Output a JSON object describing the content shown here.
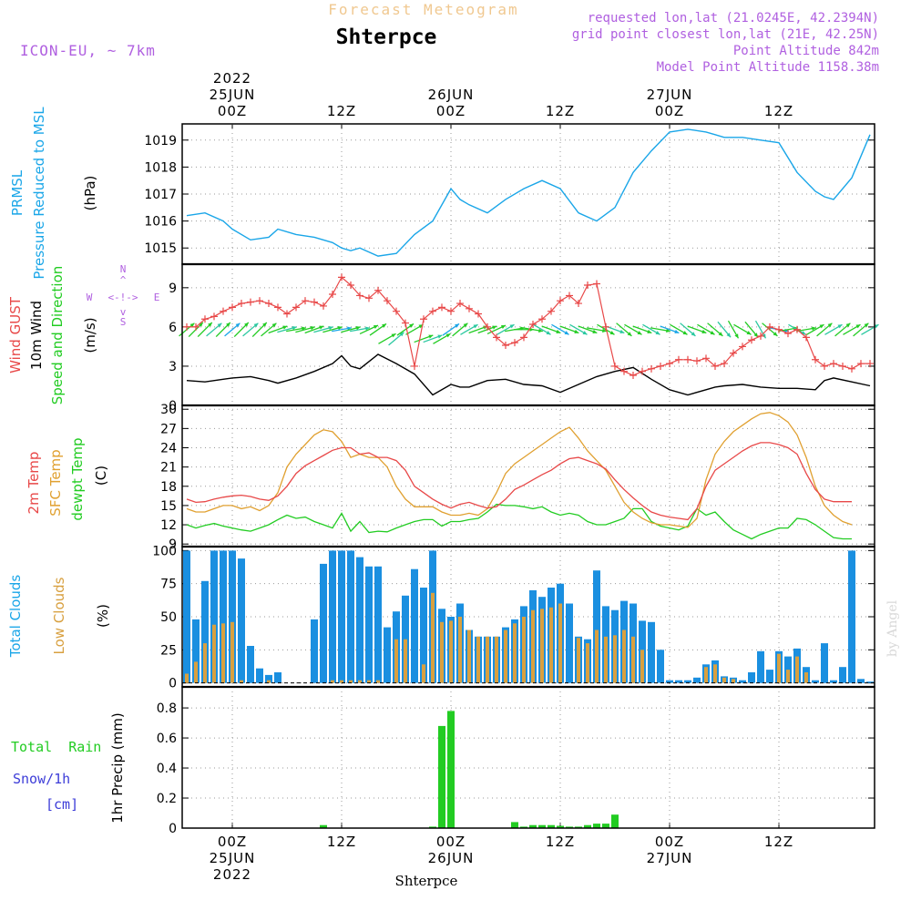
{
  "header": {
    "top_title": "Forecast Meteogram",
    "location": "Shterpce",
    "model": "ICON-EU, ~ 7km",
    "requested": "requested lon,lat (21.0245E, 42.2394N)",
    "closest": "grid point closest lon,lat (21E, 42.25N)",
    "point_alt": "Point Altitude 842m",
    "model_alt": "Model Point Altitude 1158.38m",
    "credit": "by Angel",
    "bottom_label": "Shterpce"
  },
  "colors": {
    "pressure": "#1aa6e8",
    "gust": "#e84848",
    "wind": "#000000",
    "temp2m": "#e84848",
    "sfc": "#e0a030",
    "dew": "#22cc22",
    "cloud_total": "#1a8fe0",
    "cloud_low": "#d8a040",
    "rain": "#22cc22",
    "snow": "#3c3cd8",
    "title_top": "#f0c890",
    "purple": "#b060e0"
  },
  "time_axis": {
    "top": [
      {
        "hour": 0,
        "lines": [
          "2022",
          "25JUN",
          "00Z"
        ]
      },
      {
        "hour": 12,
        "lines": [
          "12Z"
        ]
      },
      {
        "hour": 24,
        "lines": [
          "26JUN",
          "00Z"
        ]
      },
      {
        "hour": 36,
        "lines": [
          "12Z"
        ]
      },
      {
        "hour": 48,
        "lines": [
          "27JUN",
          "00Z"
        ]
      },
      {
        "hour": 60,
        "lines": [
          "12Z"
        ]
      }
    ],
    "bottom": [
      {
        "hour": 0,
        "lines": [
          "00Z",
          "25JUN",
          "2022"
        ]
      },
      {
        "hour": 12,
        "lines": [
          "12Z"
        ]
      },
      {
        "hour": 24,
        "lines": [
          "00Z",
          "26JUN"
        ]
      },
      {
        "hour": 36,
        "lines": [
          "12Z"
        ]
      },
      {
        "hour": 48,
        "lines": [
          "00Z",
          "27JUN"
        ]
      },
      {
        "hour": 60,
        "lines": [
          "12Z"
        ]
      }
    ]
  },
  "labels": {
    "prmsl": "PRMSL",
    "prmsl_long": "Pressure Reduced to MSL",
    "prmsl_unit": "(hPa)",
    "gust": "Wind GUST",
    "wind10": "10m Wind",
    "wind_dir": "Speed and Direction",
    "wind_unit": "(m/s)",
    "compass_n": "N",
    "compass_s": "S",
    "compass_w": "W",
    "compass_e": "E",
    "compass_ew": "<-!->",
    "compass_up": "^",
    "compass_dn": "v",
    "temp2m": "2m Temp",
    "sfc": "SFC Temp",
    "dew": "dewpt Temp",
    "temp_unit": "(C)",
    "total_clouds": "Total Clouds",
    "low_clouds": "Low Clouds",
    "cloud_unit": "(%)",
    "total_rain": "Total  Rain",
    "snow": "Snow/1h",
    "snow_unit": "[cm]",
    "precip": "1hr Precip (mm)"
  },
  "chart_data": [
    {
      "type": "line",
      "name": "pressure",
      "ylim": [
        1014.4,
        1019.6
      ],
      "yticks": [
        "1015",
        "1016",
        "1017",
        "1018",
        "1019"
      ],
      "hours": [
        -5,
        -3,
        -1,
        0,
        2,
        4,
        5,
        7,
        9,
        11,
        12,
        13,
        14,
        16,
        18,
        20,
        22,
        24,
        25,
        26,
        28,
        30,
        32,
        34,
        36,
        38,
        40,
        42,
        44,
        46,
        48,
        50,
        52,
        53,
        54,
        56,
        58,
        60,
        62,
        64,
        65,
        66,
        68,
        70
      ],
      "values": [
        1016.2,
        1016.3,
        1016.0,
        1015.7,
        1015.3,
        1015.4,
        1015.7,
        1015.5,
        1015.4,
        1015.2,
        1015.0,
        1014.9,
        1015.0,
        1014.7,
        1014.8,
        1015.5,
        1016.0,
        1017.2,
        1016.8,
        1016.6,
        1016.3,
        1016.8,
        1017.2,
        1017.5,
        1017.2,
        1016.3,
        1016.0,
        1016.5,
        1017.8,
        1018.6,
        1019.3,
        1019.4,
        1019.3,
        1019.2,
        1019.1,
        1019.1,
        1019.0,
        1018.9,
        1017.8,
        1017.1,
        1016.9,
        1016.8,
        1017.6,
        1019.2
      ]
    },
    {
      "type": "line",
      "name": "wind",
      "ylim": [
        0,
        10.8
      ],
      "yticks": [
        "0",
        "3",
        "6",
        "9"
      ],
      "gust_hours": [
        -5,
        -4,
        -3,
        -2,
        -1,
        0,
        1,
        2,
        3,
        4,
        5,
        6,
        7,
        8,
        9,
        10,
        11,
        12,
        13,
        14,
        15,
        16,
        17,
        18,
        19,
        20,
        21,
        22,
        23,
        24,
        25,
        26,
        27,
        28,
        29,
        30,
        31,
        32,
        33,
        34,
        35,
        36,
        37,
        38,
        39,
        40,
        41,
        42,
        43,
        44,
        45,
        46,
        47,
        48,
        49,
        50,
        51,
        52,
        53,
        54,
        55,
        56,
        57,
        58,
        59,
        60,
        61,
        62,
        63,
        64,
        65,
        66,
        67,
        68,
        69,
        70
      ],
      "gust": [
        6.0,
        6.0,
        6.6,
        6.8,
        7.2,
        7.5,
        7.8,
        7.9,
        8.0,
        7.8,
        7.5,
        7.0,
        7.5,
        8.0,
        7.9,
        7.6,
        8.5,
        9.8,
        9.2,
        8.4,
        8.2,
        8.8,
        8.0,
        7.2,
        6.3,
        3.0,
        6.6,
        7.2,
        7.5,
        7.2,
        7.8,
        7.4,
        7.0,
        6.0,
        5.2,
        4.6,
        4.8,
        5.2,
        6.2,
        6.6,
        7.2,
        8.0,
        8.4,
        7.8,
        9.2,
        9.3,
        6.0,
        3.0,
        2.6,
        2.3,
        2.6,
        2.8,
        3.0,
        3.2,
        3.5,
        3.5,
        3.4,
        3.6,
        3.0,
        3.2,
        4.0,
        4.5,
        5.0,
        5.3,
        6.0,
        5.8,
        5.5,
        5.8,
        5.2,
        3.5,
        3.0,
        3.2,
        3.0,
        2.8,
        3.2,
        3.2
      ],
      "speed_hours": [
        -5,
        -3,
        -1,
        0,
        2,
        4,
        5,
        7,
        9,
        11,
        12,
        13,
        14,
        16,
        18,
        20,
        22,
        24,
        25,
        26,
        28,
        30,
        32,
        34,
        36,
        38,
        40,
        42,
        44,
        46,
        48,
        50,
        52,
        53,
        54,
        56,
        58,
        60,
        62,
        64,
        65,
        66,
        68,
        70
      ],
      "speed": [
        1.9,
        1.8,
        2.0,
        2.1,
        2.2,
        1.9,
        1.7,
        2.1,
        2.6,
        3.2,
        3.8,
        3.0,
        2.8,
        3.9,
        3.2,
        2.4,
        0.8,
        1.6,
        1.4,
        1.4,
        1.9,
        2.0,
        1.6,
        1.5,
        1.0,
        1.6,
        2.2,
        2.6,
        2.9,
        2.0,
        1.2,
        0.8,
        1.2,
        1.4,
        1.5,
        1.6,
        1.4,
        1.3,
        1.3,
        1.2,
        1.9,
        2.1,
        1.8,
        1.5
      ],
      "arrow_hours": [
        -5,
        -4,
        -3,
        -2,
        -1,
        0,
        1,
        2,
        3,
        4,
        5,
        6,
        7,
        8,
        9,
        10,
        11,
        12,
        13,
        14,
        15,
        16,
        17,
        18,
        19,
        20,
        21,
        22,
        23,
        24,
        25,
        26,
        27,
        28,
        29,
        30,
        31,
        32,
        33,
        34,
        35,
        36,
        37,
        38,
        39,
        40,
        41,
        42,
        43,
        44,
        45,
        46,
        47,
        48,
        49,
        50,
        51,
        52,
        53,
        54,
        55,
        56,
        57,
        58,
        59,
        60,
        61,
        62,
        63,
        64,
        65,
        66,
        67,
        68,
        69,
        70
      ],
      "arrow_dir": [
        230,
        225,
        225,
        230,
        225,
        230,
        225,
        230,
        225,
        230,
        250,
        255,
        260,
        255,
        250,
        255,
        255,
        260,
        255,
        260,
        245,
        235,
        240,
        230,
        235,
        240,
        250,
        250,
        240,
        235,
        230,
        240,
        250,
        250,
        245,
        240,
        260,
        270,
        280,
        300,
        290,
        300,
        290,
        300,
        290,
        280,
        300,
        290,
        310,
        300,
        290,
        300,
        280,
        290,
        300,
        310,
        290,
        300,
        310,
        320,
        330,
        300,
        320,
        330,
        310,
        280,
        260,
        300,
        260,
        240,
        230,
        240,
        230,
        240,
        230,
        240
      ]
    },
    {
      "type": "line",
      "name": "temperature",
      "ylim": [
        8.6,
        30.6
      ],
      "yticks": [
        "9",
        "12",
        "15",
        "18",
        "21",
        "24",
        "27",
        "30"
      ],
      "hours": [
        -5,
        -4,
        -3,
        -2,
        -1,
        0,
        1,
        2,
        3,
        4,
        5,
        6,
        7,
        8,
        9,
        10,
        11,
        12,
        13,
        14,
        15,
        16,
        17,
        18,
        19,
        20,
        21,
        22,
        23,
        24,
        25,
        26,
        27,
        28,
        29,
        30,
        31,
        32,
        33,
        34,
        35,
        36,
        37,
        38,
        39,
        40,
        41,
        42,
        43,
        44,
        45,
        46,
        47,
        48,
        49,
        50,
        51,
        52,
        53,
        54,
        55,
        56,
        57,
        58,
        59,
        60,
        61,
        62,
        63,
        64,
        65,
        66,
        67,
        68,
        69,
        70
      ],
      "t2m": [
        16.0,
        15.5,
        15.6,
        16.0,
        16.3,
        16.5,
        16.6,
        16.4,
        16.0,
        15.8,
        16.5,
        18.0,
        20.0,
        21.2,
        22.0,
        22.8,
        23.6,
        24.0,
        24.0,
        23.0,
        23.2,
        22.5,
        22.5,
        22.0,
        20.5,
        18.0,
        17.0,
        16.0,
        15.2,
        14.6,
        15.2,
        15.5,
        15.0,
        14.6,
        14.8,
        16.0,
        17.5,
        18.2,
        19.0,
        19.8,
        20.5,
        21.5,
        22.3,
        22.5,
        22.0,
        21.5,
        20.7,
        19.0,
        17.5,
        16.2,
        15.0,
        14.0,
        13.5,
        13.2,
        13.0,
        12.8,
        14.5,
        18.0,
        20.5,
        21.5,
        22.5,
        23.5,
        24.3,
        24.8,
        24.8,
        24.5,
        24.0,
        23.0,
        20.0,
        17.5,
        16.0,
        15.6,
        15.6,
        15.6
      ],
      "sfc": [
        14.5,
        14.0,
        14.0,
        14.5,
        15.0,
        15.0,
        14.5,
        14.8,
        14.2,
        15.0,
        17.0,
        21.0,
        23.0,
        24.5,
        26.0,
        26.8,
        26.5,
        25.0,
        22.5,
        23.0,
        22.5,
        22.5,
        21.0,
        18.0,
        16.0,
        14.8,
        14.8,
        14.8,
        14.0,
        13.5,
        13.5,
        13.8,
        13.5,
        14.5,
        17.0,
        20.0,
        21.5,
        22.5,
        23.5,
        24.5,
        25.5,
        26.5,
        27.2,
        25.5,
        23.5,
        22.0,
        20.5,
        18.0,
        15.5,
        14.0,
        13.0,
        12.3,
        12.0,
        12.0,
        11.8,
        11.6,
        13.0,
        19.0,
        23.0,
        25.0,
        26.5,
        27.5,
        28.5,
        29.3,
        29.5,
        29.0,
        28.0,
        26.0,
        22.5,
        18.0,
        15.0,
        13.5,
        12.5,
        12.0
      ],
      "dew": [
        12.0,
        11.5,
        11.9,
        12.2,
        11.8,
        11.5,
        11.2,
        11.0,
        11.5,
        12.0,
        12.8,
        13.5,
        13.0,
        13.2,
        12.5,
        12.0,
        11.5,
        13.8,
        11.0,
        12.5,
        10.8,
        11.0,
        10.9,
        11.5,
        12.0,
        12.5,
        12.8,
        12.8,
        11.8,
        12.5,
        12.5,
        12.8,
        13.0,
        14.0,
        15.2,
        15.0,
        15.0,
        14.8,
        14.5,
        14.8,
        14.0,
        13.5,
        13.8,
        13.5,
        12.5,
        12.0,
        12.0,
        12.5,
        13.0,
        14.5,
        14.5,
        12.5,
        11.8,
        11.5,
        11.2,
        11.8,
        14.5,
        13.5,
        14.0,
        12.5,
        11.2,
        10.5,
        9.8,
        10.5,
        11.0,
        11.5,
        11.5,
        13.0,
        12.8,
        12.0,
        11.0,
        10.0,
        9.8,
        9.8
      ]
    },
    {
      "type": "bar",
      "name": "clouds",
      "ylim": [
        -3,
        103
      ],
      "yticks": [
        "0",
        "25",
        "50",
        "75",
        "100"
      ],
      "hours": [
        -5,
        -4,
        -3,
        -2,
        -1,
        0,
        1,
        2,
        3,
        4,
        5,
        6,
        7,
        8,
        9,
        10,
        11,
        12,
        13,
        14,
        15,
        16,
        17,
        18,
        19,
        20,
        21,
        22,
        23,
        24,
        25,
        26,
        27,
        28,
        29,
        30,
        31,
        32,
        33,
        34,
        35,
        36,
        37,
        38,
        39,
        40,
        41,
        42,
        43,
        44,
        45,
        46,
        47,
        48,
        49,
        50,
        51,
        52,
        53,
        54,
        55,
        56,
        57,
        58,
        59,
        60,
        61,
        62,
        63,
        64,
        65,
        66,
        67,
        68,
        69,
        70
      ],
      "total": [
        100,
        48,
        77,
        100,
        100,
        100,
        94,
        28,
        11,
        6,
        8,
        0,
        0,
        0,
        48,
        90,
        100,
        100,
        100,
        95,
        88,
        88,
        42,
        54,
        66,
        86,
        72,
        100,
        56,
        50,
        60,
        40,
        35,
        35,
        35,
        42,
        48,
        58,
        70,
        65,
        72,
        75,
        60,
        35,
        33,
        85,
        58,
        55,
        62,
        60,
        47,
        46,
        25,
        2,
        2,
        2,
        4,
        14,
        17,
        5,
        4,
        2,
        8,
        24,
        10,
        24,
        20,
        26,
        12,
        2,
        30,
        2,
        12,
        100,
        3,
        1
      ],
      "low": [
        7,
        16,
        30,
        44,
        45,
        46,
        2,
        0,
        0,
        2,
        0,
        0,
        0,
        0,
        0,
        0,
        2,
        2,
        2,
        2,
        2,
        2,
        0,
        33,
        33,
        0,
        14,
        68,
        46,
        47,
        50,
        40,
        35,
        35,
        35,
        40,
        45,
        50,
        55,
        56,
        57,
        60,
        0,
        34,
        30,
        40,
        35,
        36,
        40,
        35,
        25,
        0,
        0,
        0,
        0,
        0,
        0,
        12,
        14,
        4,
        3,
        0,
        0,
        0,
        0,
        22,
        10,
        20,
        8,
        0,
        0,
        0,
        0,
        0,
        0,
        0
      ]
    },
    {
      "type": "bar",
      "name": "precipitation",
      "ylim": [
        0,
        0.94
      ],
      "yticks": [
        "0",
        "0.2",
        "0.4",
        "0.6",
        "0.8"
      ],
      "hours": [
        10,
        22,
        23,
        24,
        31,
        32,
        33,
        34,
        35,
        36,
        37,
        38,
        39,
        40,
        41,
        42
      ],
      "values": [
        0.02,
        0.01,
        0.68,
        0.78,
        0.04,
        0.01,
        0.02,
        0.02,
        0.02,
        0.015,
        0.01,
        0.01,
        0.02,
        0.03,
        0.03,
        0.09
      ]
    }
  ]
}
